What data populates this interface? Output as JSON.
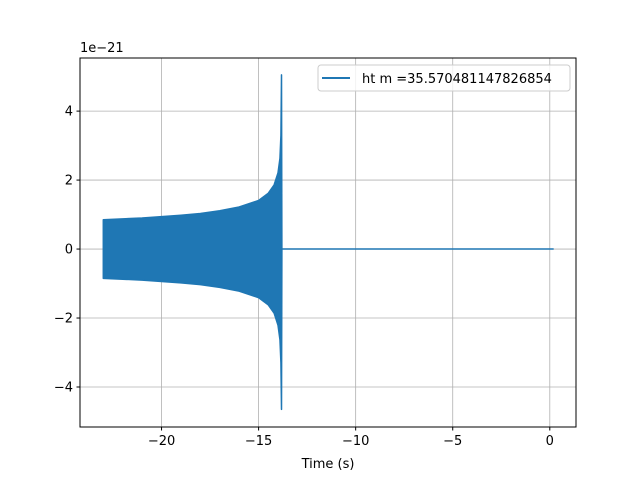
{
  "chart_data": {
    "type": "line",
    "title": "",
    "xlabel": "Time (s)",
    "ylabel": "",
    "y_offset_text": "1e−21",
    "xlim": [
      -24.2,
      1.35
    ],
    "ylim": [
      -5.16,
      5.54
    ],
    "xticks": [
      -20,
      -15,
      -10,
      -5,
      0
    ],
    "xtick_labels": [
      "−20",
      "−15",
      "−10",
      "−5",
      "0"
    ],
    "yticks": [
      -4,
      -2,
      0,
      2,
      4
    ],
    "ytick_labels": [
      "−4",
      "−2",
      "0",
      "2",
      "4"
    ],
    "grid": true,
    "legend_placement": "upper right",
    "series": [
      {
        "name": "ht m =35.570481147826854",
        "color": "#1f77b4",
        "envelope": {
          "x": [
            -23.0,
            -22.0,
            -21.0,
            -20.0,
            -19.0,
            -18.0,
            -17.0,
            -16.0,
            -15.0,
            -14.5,
            -14.2,
            -14.0,
            -13.9,
            -13.85,
            -13.82,
            -13.8
          ],
          "upper": [
            0.85,
            0.875,
            0.9,
            0.94,
            0.98,
            1.03,
            1.11,
            1.22,
            1.41,
            1.62,
            1.86,
            2.21,
            2.63,
            3.3,
            5.05,
            0.0
          ],
          "lower": [
            -0.85,
            -0.875,
            -0.9,
            -0.94,
            -0.98,
            -1.03,
            -1.11,
            -1.22,
            -1.41,
            -1.62,
            -1.86,
            -2.21,
            -2.63,
            -3.3,
            -4.65,
            0.0
          ]
        },
        "flat_segment": {
          "x": [
            -13.8,
            0.2
          ],
          "y": [
            0,
            0
          ]
        }
      }
    ]
  }
}
